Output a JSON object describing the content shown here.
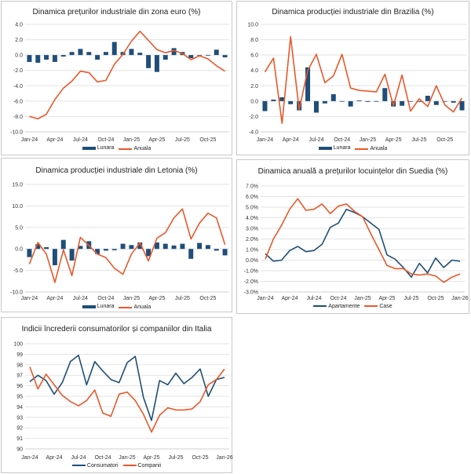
{
  "colors": {
    "bar": "#1f4e79",
    "line_orange": "#e8582a",
    "line_blue": "#1f4e79",
    "grid": "#e3e3e3",
    "axis_text": "#333333"
  },
  "chart_data": [
    {
      "id": "eurozone",
      "type": "bar+line",
      "title": "Dinamica prețurilor industriale din zona euro (%)",
      "xlabel": "",
      "ylabel": "",
      "ylim": [
        -10,
        4
      ],
      "ystep": 2,
      "ydecimals": 1,
      "ysuffix": "",
      "grid": true,
      "legend_position": "bottom",
      "x": [
        "Jan-24",
        "Feb-24",
        "Mar-24",
        "Apr-24",
        "May-24",
        "Jun-24",
        "Jul-24",
        "Aug-24",
        "Sep-24",
        "Oct-24",
        "Nov-24",
        "Dec-24",
        "Jan-25",
        "Feb-25",
        "Mar-25",
        "Apr-25",
        "May-25",
        "Jun-25",
        "Jul-25",
        "Aug-25",
        "Sep-25",
        "Oct-25",
        "Nov-25",
        "Dec-25"
      ],
      "xticks": [
        "Jan-24",
        "Apr-24",
        "Jul-24",
        "Oct-24",
        "Jan-25",
        "Apr-25",
        "Jul-25",
        "Oct-25"
      ],
      "series": [
        {
          "name": "Lunara",
          "kind": "bar",
          "values": [
            -0.9,
            -1.0,
            -0.6,
            -0.9,
            -0.2,
            0.4,
            0.8,
            0.4,
            -0.6,
            0.4,
            1.7,
            0.4,
            0.8,
            0.3,
            -1.7,
            -2.2,
            -0.6,
            0.9,
            0.4,
            -0.4,
            0.0,
            0.0,
            0.7,
            -0.3
          ]
        },
        {
          "name": "Anuala",
          "kind": "line",
          "values": [
            -8.0,
            -8.3,
            -7.7,
            -5.8,
            -4.3,
            -3.4,
            -2.1,
            -2.3,
            -3.5,
            -3.3,
            -1.2,
            0.1,
            1.8,
            3.1,
            1.9,
            0.7,
            0.3,
            0.6,
            0.2,
            -0.6,
            -0.1,
            -0.5,
            -1.4,
            -2.1
          ]
        }
      ]
    },
    {
      "id": "brazil",
      "type": "bar+line",
      "title": "Dinamica producției industriale din Brazilia (%)",
      "xlabel": "",
      "ylabel": "",
      "ylim": [
        -4,
        10
      ],
      "ystep": 2,
      "ydecimals": 1,
      "ysuffix": "",
      "grid": true,
      "legend_position": "bottom",
      "x": [
        "Jan-24",
        "Feb-24",
        "Mar-24",
        "Apr-24",
        "May-24",
        "Jun-24",
        "Jul-24",
        "Aug-24",
        "Sep-24",
        "Oct-24",
        "Nov-24",
        "Dec-24",
        "Jan-25",
        "Feb-25",
        "Mar-25",
        "Apr-25",
        "May-25",
        "Jun-25",
        "Jul-25",
        "Aug-25",
        "Sep-25",
        "Oct-25",
        "Nov-25",
        "Dec-25"
      ],
      "xticks": [
        "Jan-24",
        "Apr-24",
        "Jul-24",
        "Oct-24",
        "Jan-25",
        "Apr-25",
        "Jul-25",
        "Oct-25"
      ],
      "series": [
        {
          "name": "Lunara",
          "kind": "bar",
          "values": [
            -1.3,
            0.2,
            0.5,
            -0.4,
            -1.2,
            4.4,
            -1.5,
            -0.3,
            0.9,
            0.0,
            -0.7,
            0.1,
            -0.1,
            0.0,
            1.7,
            -0.7,
            -0.6,
            0.0,
            -0.1,
            0.7,
            -0.5,
            0.0,
            -0.2,
            -1.2
          ]
        },
        {
          "name": "Anuala",
          "kind": "line",
          "values": [
            3.8,
            5.6,
            -2.9,
            8.4,
            -1.1,
            4.0,
            6.1,
            2.4,
            3.3,
            6.1,
            1.7,
            1.4,
            1.3,
            1.2,
            3.5,
            -0.6,
            3.4,
            -1.3,
            0.3,
            -0.7,
            2.0,
            -0.5,
            -1.4,
            0.4
          ]
        }
      ]
    },
    {
      "id": "latvia",
      "type": "bar+line",
      "title": "Dinamica producției industriale din Letonia (%)",
      "xlabel": "",
      "ylabel": "",
      "ylim": [
        -10,
        15
      ],
      "ystep": 5,
      "ydecimals": 1,
      "ysuffix": "",
      "grid": true,
      "legend_position": "bottom",
      "x": [
        "Jan-24",
        "Feb-24",
        "Mar-24",
        "Apr-24",
        "May-24",
        "Jun-24",
        "Jul-24",
        "Aug-24",
        "Sep-24",
        "Oct-24",
        "Nov-24",
        "Dec-24",
        "Jan-25",
        "Feb-25",
        "Mar-25",
        "Apr-25",
        "May-25",
        "Jun-25",
        "Jul-25",
        "Aug-25",
        "Sep-25",
        "Oct-25",
        "Nov-25",
        "Dec-25"
      ],
      "xticks": [
        "Jan-24",
        "Apr-24",
        "Jul-24",
        "Oct-24",
        "Jan-25",
        "Apr-25",
        "Jul-25",
        "Oct-25"
      ],
      "series": [
        {
          "name": "Lunara",
          "kind": "bar",
          "values": [
            -1.9,
            1.1,
            0.4,
            -3.8,
            2.1,
            -2.7,
            0.7,
            1.8,
            -1.2,
            -0.4,
            -0.3,
            1.2,
            0.9,
            1.5,
            -1.7,
            1.5,
            1.2,
            0.8,
            1.2,
            -2.3,
            1.4,
            0.9,
            -0.4,
            -1.5
          ]
        },
        {
          "name": "Anuala",
          "kind": "line",
          "values": [
            -3.5,
            1.5,
            -1.2,
            -7.8,
            -0.2,
            -6.2,
            2.7,
            0.8,
            -1.2,
            -2.0,
            -4.5,
            -5.9,
            -1.2,
            1.4,
            -2.8,
            2.5,
            3.8,
            7.2,
            9.3,
            2.3,
            6.0,
            8.3,
            7.2,
            1.0
          ]
        }
      ]
    },
    {
      "id": "sweden",
      "type": "line",
      "title": "Dinamica anuală a prețurilor locuințelor din Suedia (%)",
      "xlabel": "",
      "ylabel": "",
      "ylim": [
        -3,
        7
      ],
      "ystep": 1,
      "ydecimals": 1,
      "ysuffix": "%",
      "grid": true,
      "legend_position": "bottom",
      "x": [
        "Jan-24",
        "Feb-24",
        "Mar-24",
        "Apr-24",
        "May-24",
        "Jun-24",
        "Jul-24",
        "Aug-24",
        "Sep-24",
        "Oct-24",
        "Nov-24",
        "Dec-24",
        "Jan-25",
        "Feb-25",
        "Mar-25",
        "Apr-25",
        "May-25",
        "Jun-25",
        "Jul-25",
        "Aug-25",
        "Sep-25",
        "Oct-25",
        "Nov-25",
        "Dec-25",
        "Jan-26"
      ],
      "xticks": [
        "Jan-24",
        "Apr-24",
        "Jul-24",
        "Oct-24",
        "Jan-25",
        "Apr-25",
        "Jul-25",
        "Oct-25",
        "Jan-26"
      ],
      "series": [
        {
          "name": "Apartamente",
          "kind": "line",
          "color": "blue",
          "values": [
            0.6,
            -0.1,
            0.0,
            0.9,
            1.3,
            0.8,
            0.9,
            1.5,
            3.1,
            3.5,
            4.8,
            4.5,
            4.1,
            3.5,
            2.9,
            0.5,
            0.1,
            -0.7,
            -1.6,
            -0.3,
            -1.2,
            0.2,
            -0.7,
            0.0,
            -0.1
          ]
        },
        {
          "name": "Case",
          "kind": "line",
          "color": "orange",
          "values": [
            0.1,
            2.0,
            3.3,
            4.8,
            5.8,
            4.7,
            4.8,
            5.3,
            4.4,
            5.1,
            5.3,
            4.6,
            4.1,
            2.5,
            1.0,
            -0.5,
            -0.8,
            -0.8,
            -1.3,
            -1.4,
            -1.3,
            -1.5,
            -2.1,
            -1.6,
            -1.3
          ]
        }
      ]
    },
    {
      "id": "italy",
      "type": "line",
      "title": "Indicii încrederii consumatorilor și companiilor din Italia",
      "xlabel": "",
      "ylabel": "",
      "ylim": [
        90,
        100
      ],
      "ystep": 1,
      "ydecimals": 0,
      "ysuffix": "",
      "grid": true,
      "legend_position": "bottom",
      "x": [
        "Jan-24",
        "Feb-24",
        "Mar-24",
        "Apr-24",
        "May-24",
        "Jun-24",
        "Jul-24",
        "Aug-24",
        "Sep-24",
        "Oct-24",
        "Nov-24",
        "Dec-24",
        "Jan-25",
        "Feb-25",
        "Mar-25",
        "Apr-25",
        "May-25",
        "Jun-25",
        "Jul-25",
        "Aug-25",
        "Sep-25",
        "Oct-25",
        "Nov-25",
        "Dec-25",
        "Jan-26"
      ],
      "xticks": [
        "Jan-24",
        "Apr-24",
        "Jul-24",
        "Oct-24",
        "Jan-25",
        "Apr-25",
        "Jul-25",
        "Oct-25",
        "Jan-26"
      ],
      "series": [
        {
          "name": "Consumatori",
          "kind": "line",
          "color": "blue",
          "values": [
            96.4,
            97.0,
            96.5,
            95.2,
            96.3,
            98.3,
            98.9,
            96.1,
            98.3,
            97.4,
            96.6,
            96.3,
            98.2,
            98.8,
            94.9,
            92.7,
            96.5,
            96.1,
            97.2,
            96.2,
            96.8,
            97.6,
            95.0,
            96.6,
            96.8
          ]
        },
        {
          "name": "Companii",
          "kind": "line",
          "color": "orange",
          "values": [
            97.8,
            95.7,
            97.1,
            96.1,
            95.1,
            94.5,
            94.1,
            94.6,
            95.6,
            93.4,
            93.1,
            95.2,
            95.4,
            94.6,
            93.3,
            91.6,
            93.2,
            93.9,
            93.7,
            93.7,
            93.8,
            94.5,
            96.1,
            96.6,
            97.6
          ]
        }
      ]
    }
  ]
}
